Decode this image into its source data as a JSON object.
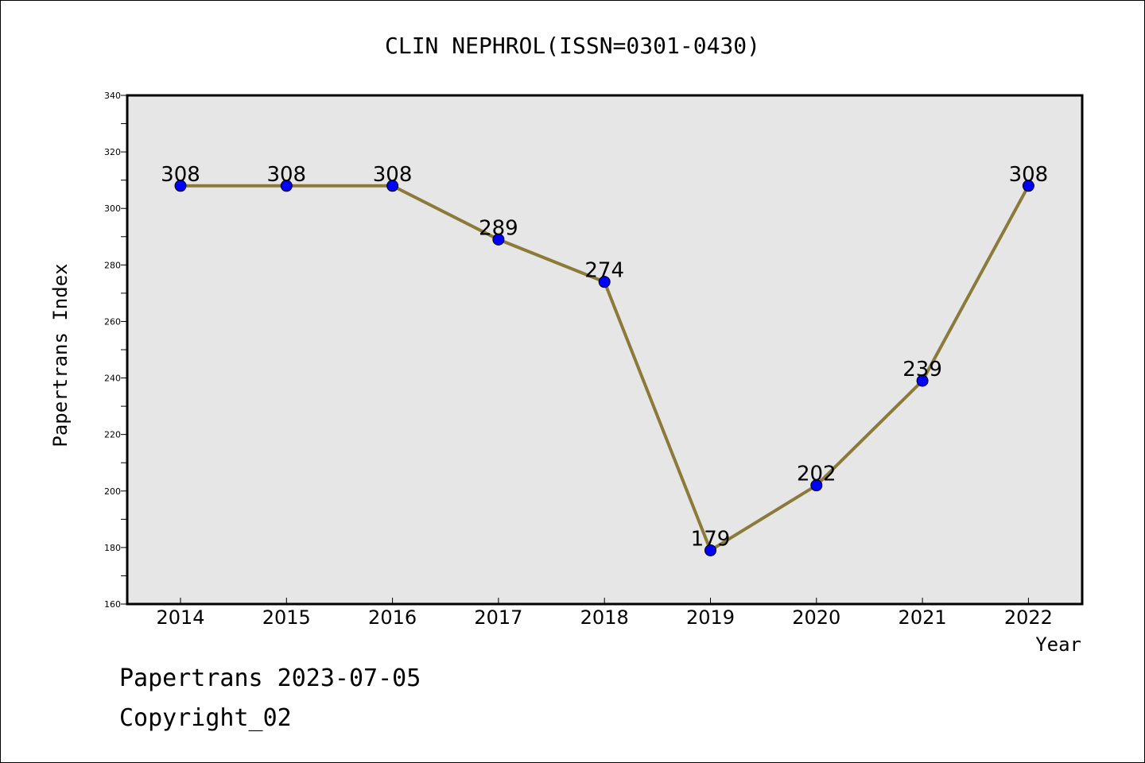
{
  "footer": {
    "stamp": "Papertrans 2023-07-05",
    "copyright": "Copyright_02"
  },
  "colors": {
    "plot_background": "#e6e6e6",
    "line": "#8b7a3a",
    "marker": "#0000ff"
  },
  "chart_data": {
    "type": "line",
    "title": "CLIN NEPHROL(ISSN=0301-0430)",
    "xlabel": "Year",
    "ylabel": "Papertrans Index",
    "categories": [
      "2014",
      "2015",
      "2016",
      "2017",
      "2018",
      "2019",
      "2020",
      "2021",
      "2022"
    ],
    "series": [
      {
        "values": [
          308,
          308,
          308,
          289,
          274,
          179,
          202,
          239,
          308
        ]
      }
    ],
    "ylim": [
      160,
      340
    ],
    "yticks": [
      160,
      180,
      200,
      220,
      240,
      260,
      280,
      300,
      320,
      340
    ],
    "grid": false,
    "legend": "none",
    "data_labels": true
  }
}
